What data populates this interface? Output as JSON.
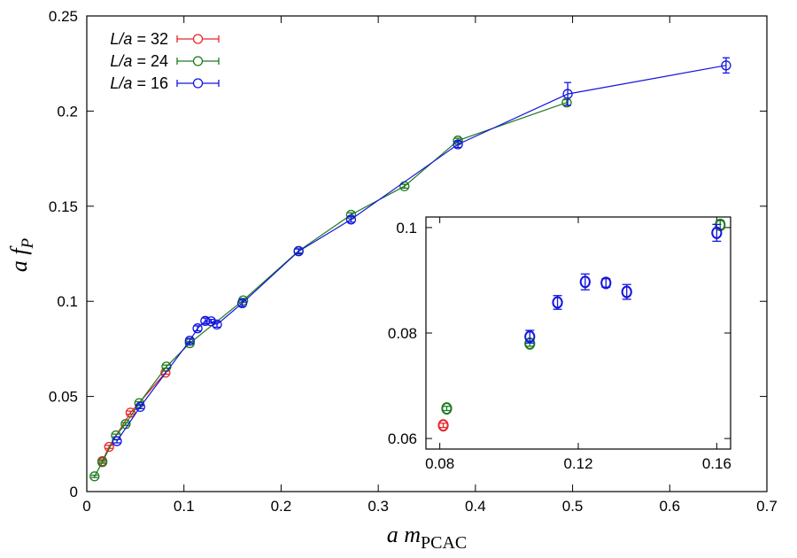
{
  "chart_data": [
    {
      "type": "line",
      "name": "main",
      "xlabel": "a m_PCAC",
      "ylabel": "a f_P",
      "xlim": [
        0,
        0.7
      ],
      "ylim": [
        0,
        0.25
      ],
      "xticks": [
        "0",
        "0.1",
        "0.2",
        "0.3",
        "0.4",
        "0.5",
        "0.6",
        "0.7"
      ],
      "yticks": [
        "0",
        "0.05",
        "0.1",
        "0.15",
        "0.2",
        "0.25"
      ],
      "xtick_values": [
        0,
        0.1,
        0.2,
        0.3,
        0.4,
        0.5,
        0.6,
        0.7
      ],
      "ytick_values": [
        0,
        0.05,
        0.1,
        0.15,
        0.2,
        0.25
      ],
      "legend_position": "top-left",
      "grid": false,
      "series": [
        {
          "name": "L/a = 32",
          "color": "#e8262a",
          "points": [
            {
              "x": 0.016,
              "y": 0.016,
              "err": 0.0008
            },
            {
              "x": 0.023,
              "y": 0.0235,
              "err": 0.0008
            },
            {
              "x": 0.045,
              "y": 0.0415,
              "err": 0.0008
            },
            {
              "x": 0.081,
              "y": 0.0625,
              "err": 0.0008
            }
          ]
        },
        {
          "name": "L/a = 24",
          "color": "#1d7a1d",
          "points": [
            {
              "x": 0.008,
              "y": 0.008,
              "err": 0.0006
            },
            {
              "x": 0.016,
              "y": 0.0155,
              "err": 0.0006
            },
            {
              "x": 0.03,
              "y": 0.0295,
              "err": 0.0007
            },
            {
              "x": 0.04,
              "y": 0.0355,
              "err": 0.0007
            },
            {
              "x": 0.054,
              "y": 0.0465,
              "err": 0.0007
            },
            {
              "x": 0.082,
              "y": 0.0657,
              "err": 0.0008
            },
            {
              "x": 0.106,
              "y": 0.078,
              "err": 0.0008
            },
            {
              "x": 0.161,
              "y": 0.1005,
              "err": 0.001
            },
            {
              "x": 0.218,
              "y": 0.1265,
              "err": 0.001
            },
            {
              "x": 0.272,
              "y": 0.1455,
              "err": 0.001
            },
            {
              "x": 0.327,
              "y": 0.1605,
              "err": 0.001
            },
            {
              "x": 0.382,
              "y": 0.1845,
              "err": 0.0012
            },
            {
              "x": 0.494,
              "y": 0.2045,
              "err": 0.0015
            }
          ]
        },
        {
          "name": "L/a = 16",
          "color": "#1414e0",
          "points": [
            {
              "x": 0.031,
              "y": 0.0265,
              "err": 0.0009
            },
            {
              "x": 0.055,
              "y": 0.0445,
              "err": 0.0009
            },
            {
              "x": 0.106,
              "y": 0.0793,
              "err": 0.0012
            },
            {
              "x": 0.114,
              "y": 0.0858,
              "err": 0.0013
            },
            {
              "x": 0.122,
              "y": 0.0897,
              "err": 0.0015
            },
            {
              "x": 0.128,
              "y": 0.0895,
              "err": 0.001
            },
            {
              "x": 0.134,
              "y": 0.0878,
              "err": 0.0014
            },
            {
              "x": 0.16,
              "y": 0.099,
              "err": 0.0016
            },
            {
              "x": 0.218,
              "y": 0.1263,
              "err": 0.0013
            },
            {
              "x": 0.272,
              "y": 0.143,
              "err": 0.0014
            },
            {
              "x": 0.382,
              "y": 0.1825,
              "err": 0.0016
            },
            {
              "x": 0.495,
              "y": 0.209,
              "err": 0.006
            },
            {
              "x": 0.658,
              "y": 0.224,
              "err": 0.004
            }
          ]
        }
      ]
    },
    {
      "type": "scatter",
      "name": "inset",
      "xlim": [
        0.076,
        0.164
      ],
      "ylim": [
        0.058,
        0.102
      ],
      "xticks": [
        "0.08",
        "0.12",
        "0.16"
      ],
      "yticks": [
        "0.06",
        "0.08",
        "0.1"
      ],
      "xtick_values": [
        0.08,
        0.12,
        0.16
      ],
      "ytick_values": [
        0.06,
        0.08,
        0.1
      ],
      "series": [
        {
          "name": "L/a = 32",
          "color": "#e8262a",
          "points": [
            {
              "x": 0.081,
              "y": 0.0625,
              "err": 0.0004
            }
          ]
        },
        {
          "name": "L/a = 24",
          "color": "#1d7a1d",
          "points": [
            {
              "x": 0.082,
              "y": 0.0657,
              "err": 0.0004
            },
            {
              "x": 0.106,
              "y": 0.078,
              "err": 0.0005
            },
            {
              "x": 0.161,
              "y": 0.1005,
              "err": 0.0008
            }
          ]
        },
        {
          "name": "L/a = 16",
          "color": "#1414e0",
          "points": [
            {
              "x": 0.106,
              "y": 0.0793,
              "err": 0.0012
            },
            {
              "x": 0.114,
              "y": 0.0858,
              "err": 0.0013
            },
            {
              "x": 0.122,
              "y": 0.0897,
              "err": 0.0015
            },
            {
              "x": 0.128,
              "y": 0.0895,
              "err": 0.0008
            },
            {
              "x": 0.134,
              "y": 0.0878,
              "err": 0.0014
            },
            {
              "x": 0.16,
              "y": 0.099,
              "err": 0.0016
            }
          ]
        }
      ]
    }
  ],
  "labels": {
    "xlabel_italic": "a m",
    "xlabel_sub": "PCAC",
    "ylabel_italic": "a f",
    "ylabel_sub": "P",
    "legend": [
      {
        "prefix": "L/a",
        "suffix": " = 32"
      },
      {
        "prefix": "L/a",
        "suffix": " = 24"
      },
      {
        "prefix": "L/a",
        "suffix": " = 16"
      }
    ]
  }
}
